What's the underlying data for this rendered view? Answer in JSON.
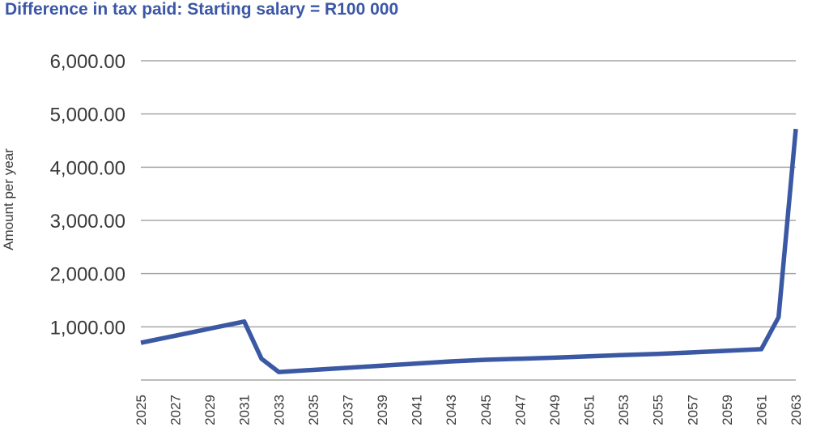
{
  "chart_data": {
    "type": "line",
    "title": "Difference in tax paid: Starting salary = R100 000",
    "xlabel": "",
    "ylabel": "Amount per year",
    "ylim": [
      0,
      6000
    ],
    "yticks": [
      "",
      "1,000.00",
      "2,000.00",
      "3,000.00",
      "4,000.00",
      "5,000.00",
      "6,000.00"
    ],
    "grid": true,
    "xticks": [
      "2025",
      "2027",
      "2029",
      "2031",
      "2033",
      "2035",
      "2037",
      "2039",
      "2041",
      "2043",
      "2045",
      "2047",
      "2049",
      "2051",
      "2053",
      "2055",
      "2057",
      "2059",
      "2061",
      "2063"
    ],
    "series": [
      {
        "color": "#3a58a3",
        "points": [
          {
            "x": 2025,
            "y": 700
          },
          {
            "x": 2031,
            "y": 1100
          },
          {
            "x": 2032,
            "y": 400
          },
          {
            "x": 2033,
            "y": 150
          },
          {
            "x": 2035,
            "y": 190
          },
          {
            "x": 2037,
            "y": 230
          },
          {
            "x": 2039,
            "y": 270
          },
          {
            "x": 2041,
            "y": 310
          },
          {
            "x": 2043,
            "y": 350
          },
          {
            "x": 2045,
            "y": 380
          },
          {
            "x": 2047,
            "y": 400
          },
          {
            "x": 2049,
            "y": 420
          },
          {
            "x": 2051,
            "y": 445
          },
          {
            "x": 2053,
            "y": 470
          },
          {
            "x": 2055,
            "y": 490
          },
          {
            "x": 2057,
            "y": 520
          },
          {
            "x": 2059,
            "y": 550
          },
          {
            "x": 2061,
            "y": 580
          },
          {
            "x": 2062,
            "y": 1180
          },
          {
            "x": 2063,
            "y": 4720
          }
        ]
      }
    ]
  }
}
